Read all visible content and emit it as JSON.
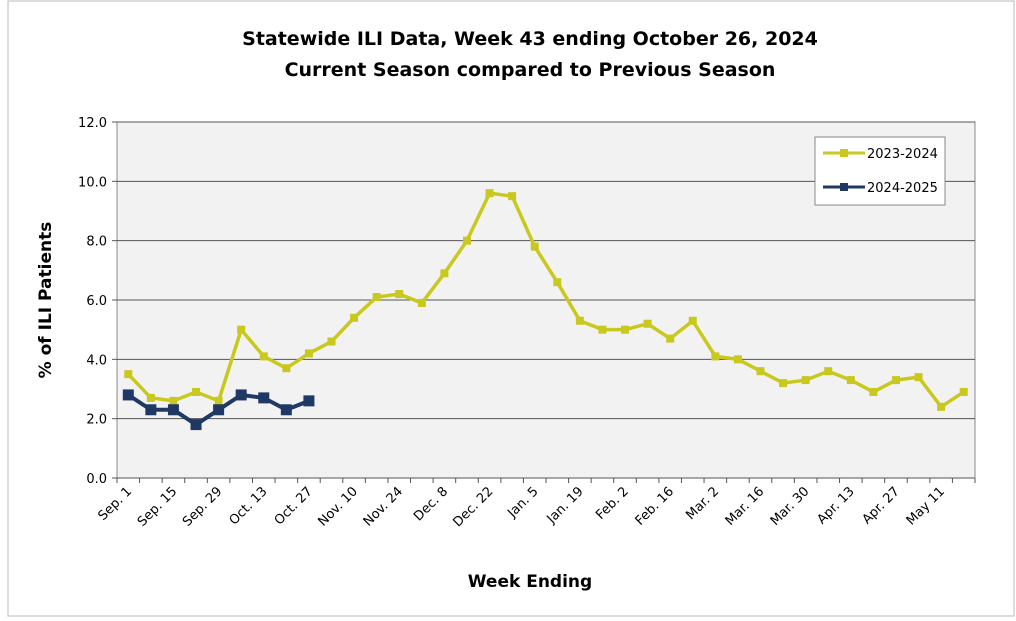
{
  "chart_data": {
    "type": "line",
    "title": "Statewide ILI Data, Week 43 ending October 26, 2024",
    "subtitle": "Current Season compared to Previous Season",
    "x_label": "Week Ending",
    "y_label": "% of ILI Patients",
    "categories": [
      "Sep. 1",
      null,
      "Sep. 15",
      null,
      "Sep. 29",
      null,
      "Oct. 13",
      null,
      "Oct. 27",
      null,
      "Nov. 10",
      null,
      "Nov. 24",
      null,
      "Dec. 8",
      null,
      "Dec. 22",
      null,
      "Jan. 5",
      null,
      "Jan. 19",
      null,
      "Feb. 2",
      null,
      "Feb. 16",
      null,
      "Mar. 2",
      null,
      "Mar. 16",
      null,
      "Mar. 30",
      null,
      "Apr. 13",
      null,
      "Apr. 27",
      null,
      "May 11",
      null
    ],
    "series": [
      {
        "name": "2023-2024",
        "color": "#c8c81e",
        "values": [
          3.5,
          2.7,
          2.6,
          2.9,
          2.6,
          5.0,
          4.1,
          3.7,
          4.2,
          4.6,
          5.4,
          6.1,
          6.2,
          5.9,
          6.9,
          8.0,
          9.6,
          9.5,
          7.8,
          6.6,
          5.3,
          5.0,
          5.0,
          5.2,
          4.7,
          5.3,
          4.1,
          4.0,
          3.6,
          3.2,
          3.3,
          3.6,
          3.3,
          2.9,
          3.3,
          3.4,
          2.4,
          2.9
        ]
      },
      {
        "name": "2024-2025",
        "color": "#1f3864",
        "values": [
          2.8,
          2.3,
          2.3,
          1.8,
          2.3,
          2.8,
          2.7,
          2.3,
          2.6,
          null,
          null,
          null,
          null,
          null,
          null,
          null,
          null,
          null,
          null,
          null,
          null,
          null,
          null,
          null,
          null,
          null,
          null,
          null,
          null,
          null,
          null,
          null,
          null,
          null,
          null,
          null,
          null,
          null
        ]
      }
    ],
    "ylim": [
      0,
      12
    ],
    "yticks": [
      {
        "value": 0,
        "label": "0.0"
      },
      {
        "value": 2,
        "label": "2.0"
      },
      {
        "value": 4,
        "label": "4.0"
      },
      {
        "value": 6,
        "label": "6.0"
      },
      {
        "value": 8,
        "label": "8.0"
      },
      {
        "value": 10,
        "label": "10.0"
      },
      {
        "value": 12,
        "label": "12.0"
      }
    ],
    "grid": true,
    "legend": "upper right"
  }
}
